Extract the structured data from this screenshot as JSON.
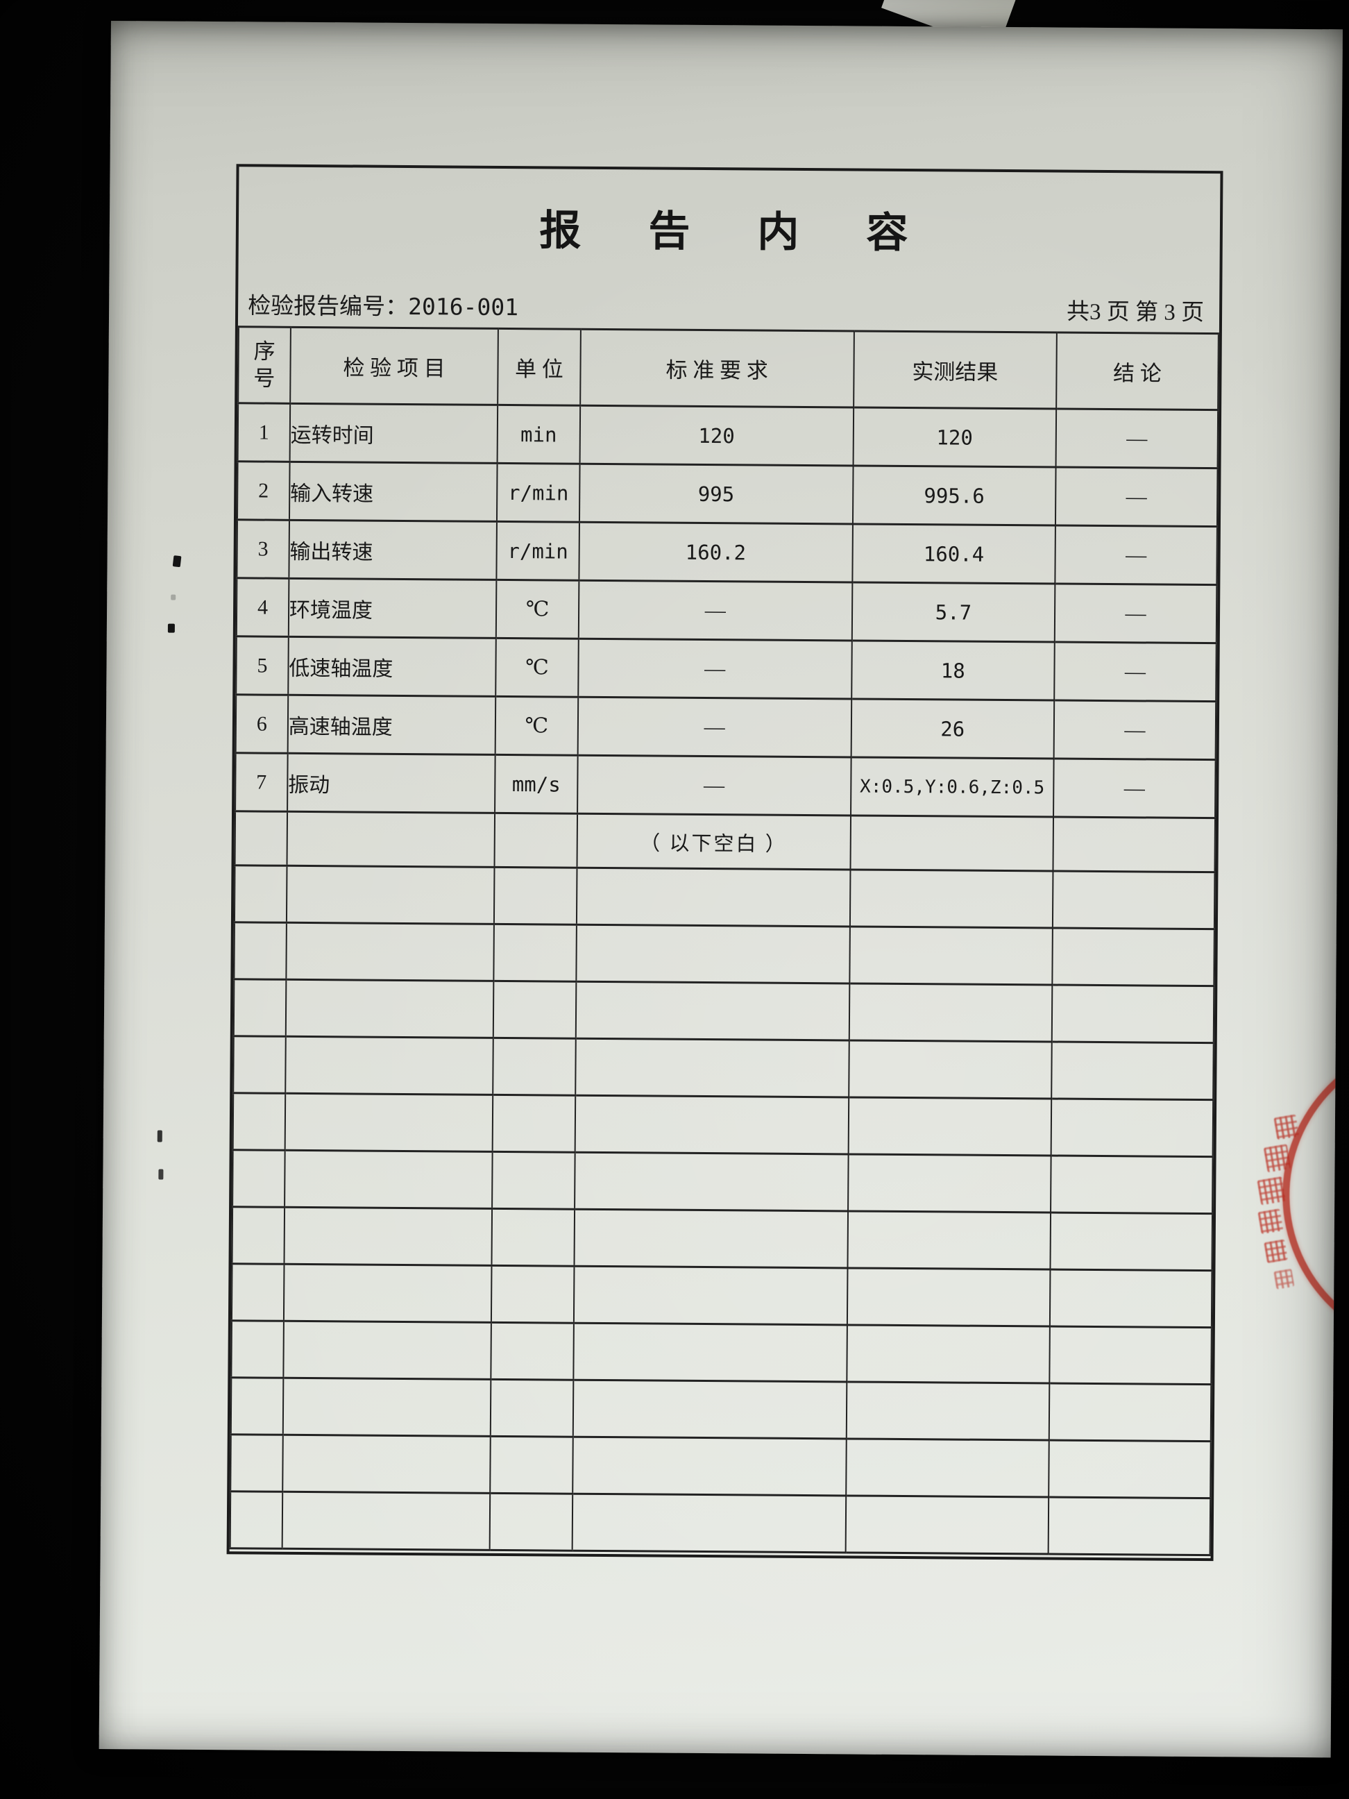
{
  "report": {
    "title": "报 告 内 容",
    "report_no": {
      "label": "检验报告编号：",
      "value": "2016-001"
    },
    "pagination": "共3 页 第 3 页",
    "table": {
      "headers": {
        "no": "序号",
        "item": "检 验 项 目",
        "unit": "单 位",
        "standard": "标 准 要 求",
        "result": "实测结果",
        "conclusion": "结 论"
      },
      "rows": [
        {
          "no": "1",
          "item": "运转时间",
          "unit": "min",
          "standard": "120",
          "result": "120",
          "conclusion": "—"
        },
        {
          "no": "2",
          "item": "输入转速",
          "unit": "r/min",
          "standard": "995",
          "result": "995.6",
          "conclusion": "—"
        },
        {
          "no": "3",
          "item": "输出转速",
          "unit": "r/min",
          "standard": "160.2",
          "result": "160.4",
          "conclusion": "—"
        },
        {
          "no": "4",
          "item": "环境温度",
          "unit": "℃",
          "standard": "—",
          "result": "5.7",
          "conclusion": "—"
        },
        {
          "no": "5",
          "item": "低速轴温度",
          "unit": "℃",
          "standard": "—",
          "result": "18",
          "conclusion": "—"
        },
        {
          "no": "6",
          "item": "高速轴温度",
          "unit": "℃",
          "standard": "—",
          "result": "26",
          "conclusion": "—"
        },
        {
          "no": "7",
          "item": "振动",
          "unit": "mm/s",
          "standard": "—",
          "result": "X:0.5,Y:0.6,Z:0.5",
          "conclusion": "—"
        }
      ],
      "blank_note": "（ 以下空白 ）",
      "empty_rows": 12
    }
  },
  "colors": {
    "paper": "#dcded7",
    "background": "#050505",
    "table_line": "#222222",
    "stamp_red": "#ba2a1e"
  }
}
